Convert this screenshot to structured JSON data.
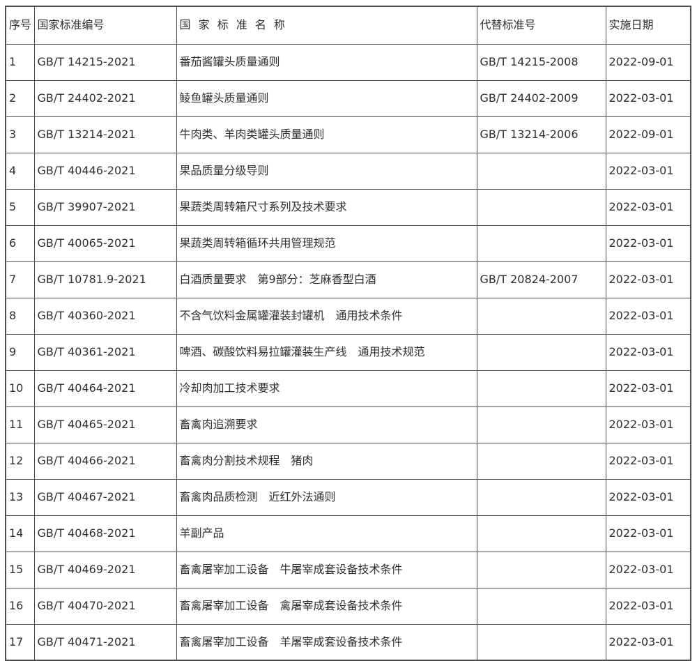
{
  "table": {
    "columns": {
      "no": "序号",
      "code": "国家标准编号",
      "name": "国 家 标 准 名 称",
      "replaces": "代替标准号",
      "date": "实施日期"
    },
    "rows": [
      {
        "no": "1",
        "code": "GB/T 14215-2021",
        "name": "番茄酱罐头质量通则",
        "replaces": "GB/T 14215-2008",
        "date": "2022-09-01"
      },
      {
        "no": "2",
        "code": "GB/T 24402-2021",
        "name": "鲮鱼罐头质量通则",
        "replaces": "GB/T 24402-2009",
        "date": "2022-03-01"
      },
      {
        "no": "3",
        "code": "GB/T 13214-2021",
        "name": "牛肉类、羊肉类罐头质量通则",
        "replaces": "GB/T 13214-2006",
        "date": "2022-09-01"
      },
      {
        "no": "4",
        "code": "GB/T 40446-2021",
        "name": "果品质量分级导则",
        "replaces": "",
        "date": "2022-03-01"
      },
      {
        "no": "5",
        "code": "GB/T 39907-2021",
        "name": "果蔬类周转箱尺寸系列及技术要求",
        "replaces": "",
        "date": "2022-03-01"
      },
      {
        "no": "6",
        "code": "GB/T 40065-2021",
        "name": "果蔬类周转箱循环共用管理规范",
        "replaces": "",
        "date": "2022-03-01"
      },
      {
        "no": "7",
        "code": "GB/T 10781.9-2021",
        "name": "白酒质量要求　第9部分：芝麻香型白酒",
        "replaces": "GB/T 20824-2007",
        "date": "2022-03-01"
      },
      {
        "no": "8",
        "code": "GB/T 40360-2021",
        "name": "不含气饮料金属罐灌装封罐机　通用技术条件",
        "replaces": "",
        "date": "2022-03-01"
      },
      {
        "no": "9",
        "code": "GB/T 40361-2021",
        "name": "啤酒、碳酸饮料易拉罐灌装生产线　通用技术规范",
        "replaces": "",
        "date": "2022-03-01"
      },
      {
        "no": "10",
        "code": "GB/T 40464-2021",
        "name": "冷却肉加工技术要求",
        "replaces": "",
        "date": "2022-03-01"
      },
      {
        "no": "11",
        "code": "GB/T 40465-2021",
        "name": "畜禽肉追溯要求",
        "replaces": "",
        "date": "2022-03-01"
      },
      {
        "no": "12",
        "code": "GB/T 40466-2021",
        "name": "畜禽肉分割技术规程　猪肉",
        "replaces": "",
        "date": "2022-03-01"
      },
      {
        "no": "13",
        "code": "GB/T 40467-2021",
        "name": "畜禽肉品质检测　近红外法通则",
        "replaces": "",
        "date": "2022-03-01"
      },
      {
        "no": "14",
        "code": "GB/T 40468-2021",
        "name": "羊副产品",
        "replaces": "",
        "date": "2022-03-01"
      },
      {
        "no": "15",
        "code": "GB/T 40469-2021",
        "name": "畜禽屠宰加工设备　牛屠宰成套设备技术条件",
        "replaces": "",
        "date": "2022-03-01"
      },
      {
        "no": "16",
        "code": "GB/T 40470-2021",
        "name": "畜禽屠宰加工设备　禽屠宰成套设备技术条件",
        "replaces": "",
        "date": "2022-03-01"
      },
      {
        "no": "17",
        "code": "GB/T 40471-2021",
        "name": "畜禽屠宰加工设备　羊屠宰成套设备技术条件",
        "replaces": "",
        "date": "2022-03-01"
      }
    ],
    "colors": {
      "border": "#4d4d4d",
      "text": "#2f2f2f",
      "background": "#ffffff"
    }
  }
}
